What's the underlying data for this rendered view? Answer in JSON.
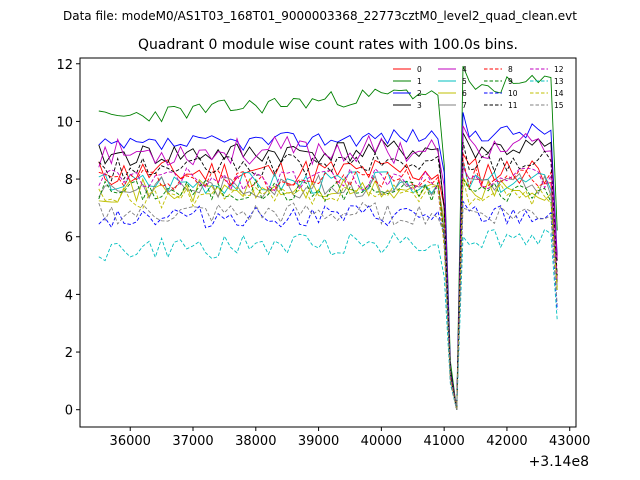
{
  "header": {
    "suptitle": "Data file: modeM0/AS1T03_168T01_9000003368_22773cztM0_level2_quad_clean.evt",
    "title": "Quadrant 0 module wise count rates with 100.0s bins."
  },
  "chart_data": {
    "type": "line",
    "title": "Quadrant 0 module wise count rates with 100.0s bins.",
    "xlabel": "",
    "ylabel": "",
    "x_offset_label": "+3.14e8",
    "xlim": [
      35200,
      43100
    ],
    "ylim": [
      -0.6,
      12.2
    ],
    "x_ticks": [
      36000,
      37000,
      38000,
      39000,
      40000,
      41000,
      42000,
      43000
    ],
    "x_tick_labels": [
      "36000",
      "37000",
      "38000",
      "39000",
      "40000",
      "41000",
      "42000",
      "43000"
    ],
    "y_ticks": [
      0,
      2,
      4,
      6,
      8,
      10,
      12
    ],
    "y_tick_labels": [
      "0",
      "2",
      "4",
      "6",
      "8",
      "10",
      "12"
    ],
    "grid": false,
    "legend_position": "top-right",
    "x_start": 35500,
    "x_step": 100,
    "series": [
      {
        "name": "0",
        "color": "#ff0000",
        "dash": "solid",
        "base": 8.2,
        "amp": 0.5,
        "trend": 0.1,
        "seed": 11
      },
      {
        "name": "1",
        "color": "#008000",
        "dash": "solid",
        "base": 10.1,
        "amp": 0.3,
        "trend": 1.3,
        "seed": 23
      },
      {
        "name": "2",
        "color": "#0000ff",
        "dash": "solid",
        "base": 9.1,
        "amp": 0.3,
        "trend": 0.6,
        "seed": 37
      },
      {
        "name": "3",
        "color": "#000000",
        "dash": "solid",
        "base": 8.8,
        "amp": 0.4,
        "trend": 0.3,
        "seed": 41
      },
      {
        "name": "4",
        "color": "#bf00bf",
        "dash": "solid",
        "base": 8.9,
        "amp": 0.5,
        "trend": 0.2,
        "seed": 53
      },
      {
        "name": "5",
        "color": "#00bfbf",
        "dash": "solid",
        "base": 7.9,
        "amp": 0.4,
        "trend": 0.0,
        "seed": 67
      },
      {
        "name": "6",
        "color": "#bfbf00",
        "dash": "solid",
        "base": 7.6,
        "amp": 0.4,
        "trend": 0.0,
        "seed": 71
      },
      {
        "name": "7",
        "color": "#808080",
        "dash": "solid",
        "base": 7.7,
        "amp": 0.4,
        "trend": 0.1,
        "seed": 83
      },
      {
        "name": "8",
        "color": "#ff0000",
        "dash": "dashed",
        "base": 8.0,
        "amp": 0.4,
        "trend": 0.0,
        "seed": 97
      },
      {
        "name": "9",
        "color": "#008000",
        "dash": "dashed",
        "base": 7.6,
        "amp": 0.4,
        "trend": 0.0,
        "seed": 101
      },
      {
        "name": "10",
        "color": "#0000ff",
        "dash": "dashed",
        "base": 6.7,
        "amp": 0.4,
        "trend": 0.0,
        "seed": 113
      },
      {
        "name": "11",
        "color": "#000000",
        "dash": "dashed",
        "base": 8.3,
        "amp": 0.4,
        "trend": 0.4,
        "seed": 127
      },
      {
        "name": "12",
        "color": "#bf00bf",
        "dash": "dashed",
        "base": 8.0,
        "amp": 0.4,
        "trend": 0.0,
        "seed": 131
      },
      {
        "name": "13",
        "color": "#00bfbf",
        "dash": "dashed",
        "base": 5.5,
        "amp": 0.4,
        "trend": 0.5,
        "seed": 149
      },
      {
        "name": "14",
        "color": "#bfbf00",
        "dash": "dashed",
        "base": 7.3,
        "amp": 0.4,
        "trend": 0.2,
        "seed": 157
      },
      {
        "name": "15",
        "color": "#808080",
        "dash": "dashed",
        "base": 6.8,
        "amp": 0.4,
        "trend": 0.0,
        "seed": 163
      }
    ],
    "dips": [
      {
        "x": 41100,
        "factor": 0.15
      },
      {
        "x": 41200,
        "factor": 0.0
      },
      {
        "x": 41300,
        "factor": 1.05
      }
    ],
    "last_x": 42800,
    "last_factor": 0.55
  }
}
